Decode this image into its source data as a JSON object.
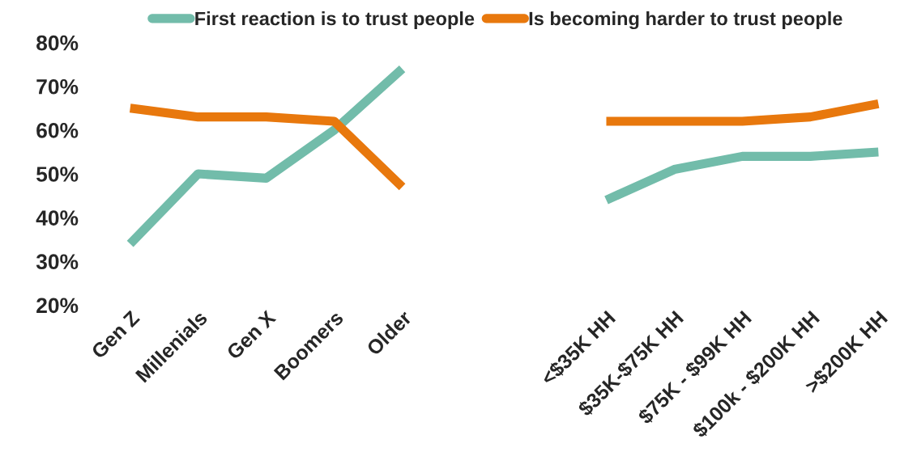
{
  "chart_data": {
    "type": "line",
    "categories": [
      "Gen Z",
      "Millenials",
      "Gen X",
      "Boomers",
      "Older",
      null,
      null,
      "<$35K HH",
      "$35K-$75K HH",
      "$75K - $99K HH",
      "$100k - $200K HH",
      ">$200K HH"
    ],
    "series": [
      {
        "name": "First reaction is to trust people",
        "color": "#72bcaa",
        "values": [
          34,
          50,
          49,
          60,
          74,
          null,
          null,
          44,
          51,
          54,
          54,
          55
        ]
      },
      {
        "name": "Is becoming harder to trust people",
        "color": "#e8780d",
        "values": [
          65,
          63,
          63,
          62,
          47,
          null,
          null,
          62,
          62,
          62,
          63,
          66
        ]
      }
    ],
    "ylim": [
      20,
      80
    ],
    "yticks": [
      {
        "value": 20,
        "label": "20%"
      },
      {
        "value": 30,
        "label": "30%"
      },
      {
        "value": 40,
        "label": "40%"
      },
      {
        "value": 50,
        "label": "50%"
      },
      {
        "value": 60,
        "label": "60%"
      },
      {
        "value": 70,
        "label": "70%"
      },
      {
        "value": 80,
        "label": "80%"
      }
    ],
    "grid": false,
    "legend": "top",
    "marker": "none",
    "line_style": "solid"
  }
}
